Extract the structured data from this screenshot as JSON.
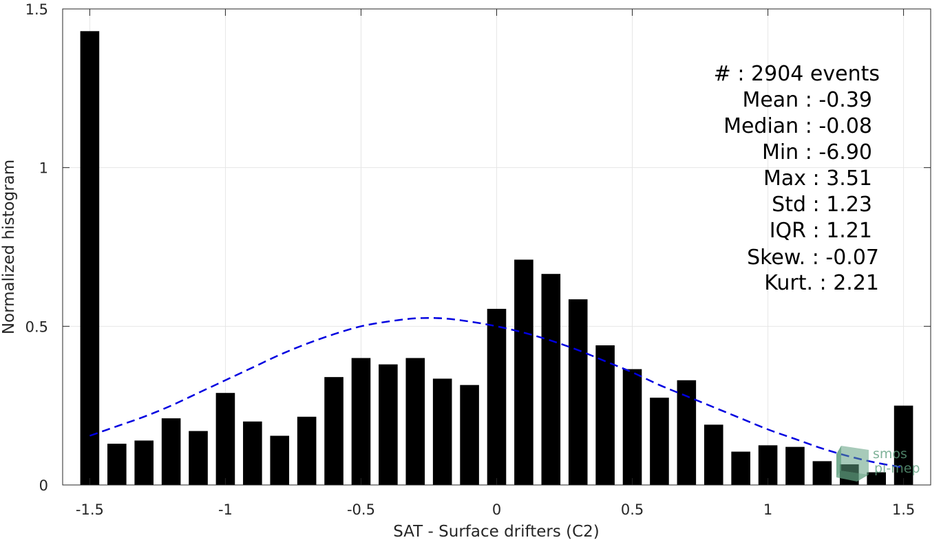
{
  "chart_data": {
    "type": "bar",
    "xlabel": "SAT - Surface drifters (C2)",
    "ylabel": "Normalized histogram",
    "xlim": [
      -1.6,
      1.6
    ],
    "ylim": [
      0,
      1.5
    ],
    "xticks": [
      -1.5,
      -1,
      -0.5,
      0,
      0.5,
      1,
      1.5
    ],
    "xtick_labels": [
      "-1.5",
      "-1",
      "-0.5",
      "0",
      "0.5",
      "1",
      "1.5"
    ],
    "yticks": [
      0,
      0.5,
      1,
      1.5
    ],
    "ytick_labels": [
      "0",
      "0.5",
      "1",
      "1.5"
    ],
    "grid": true,
    "bar_width": 0.07,
    "bars": {
      "x": [
        -1.5,
        -1.4,
        -1.3,
        -1.2,
        -1.1,
        -1.0,
        -0.9,
        -0.8,
        -0.7,
        -0.6,
        -0.5,
        -0.4,
        -0.3,
        -0.2,
        -0.1,
        0.0,
        0.1,
        0.2,
        0.3,
        0.4,
        0.5,
        0.6,
        0.7,
        0.8,
        0.9,
        1.0,
        1.1,
        1.2,
        1.3,
        1.4,
        1.5
      ],
      "values": [
        1.43,
        0.13,
        0.14,
        0.21,
        0.17,
        0.29,
        0.2,
        0.155,
        0.215,
        0.34,
        0.4,
        0.38,
        0.4,
        0.335,
        0.315,
        0.555,
        0.71,
        0.665,
        0.585,
        0.44,
        0.365,
        0.275,
        0.33,
        0.19,
        0.105,
        0.125,
        0.12,
        0.075,
        0.065,
        0.04,
        0.25
      ],
      "color": "#000000"
    },
    "fit_curve": {
      "style": "dashed",
      "color": "#0000e0",
      "x": [
        -1.5,
        -1.4,
        -1.3,
        -1.2,
        -1.1,
        -1.0,
        -0.9,
        -0.8,
        -0.7,
        -0.6,
        -0.5,
        -0.4,
        -0.3,
        -0.2,
        -0.1,
        0.0,
        0.1,
        0.2,
        0.3,
        0.4,
        0.5,
        0.6,
        0.7,
        0.8,
        0.9,
        1.0,
        1.1,
        1.2,
        1.3,
        1.4,
        1.5
      ],
      "y": [
        0.155,
        0.185,
        0.215,
        0.25,
        0.29,
        0.33,
        0.37,
        0.41,
        0.445,
        0.475,
        0.5,
        0.515,
        0.525,
        0.525,
        0.515,
        0.5,
        0.48,
        0.455,
        0.425,
        0.39,
        0.355,
        0.315,
        0.28,
        0.245,
        0.21,
        0.175,
        0.145,
        0.115,
        0.09,
        0.07,
        0.055
      ]
    },
    "stats": {
      "events": "#  : 2904 events",
      "lines": [
        "Mean : -0.39",
        "Median : -0.08",
        "Min : -6.90",
        "Max : 3.51",
        "Std : 1.23",
        "IQR : 1.21",
        "Skew. : -0.07",
        "Kurt. : 2.21"
      ]
    }
  },
  "logo": {
    "line1": "smos",
    "line2": "pi-mep",
    "color": "#5f9f7f"
  }
}
